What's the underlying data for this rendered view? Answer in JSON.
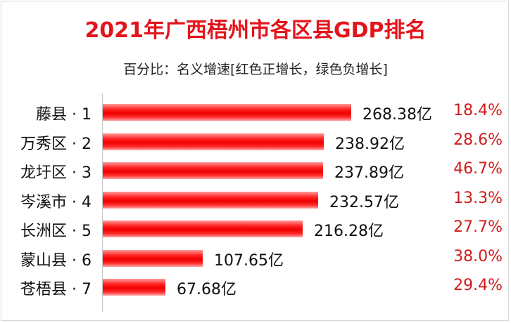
{
  "title": "2021年广西梧州市各区县GDP排名",
  "subtitle": "百分比：名义增速[红色正增长，绿色负增长]",
  "colors": {
    "title": "#e4141b",
    "bar": "#ff1a1a",
    "positive_growth": "#d11a1a",
    "negative_growth": "#1a9e3a"
  },
  "chart_data": {
    "type": "bar",
    "orientation": "horizontal",
    "title": "2021年广西梧州市各区县GDP排名",
    "subtitle": "百分比：名义增速[红色正增长，绿色负增长]",
    "categories": [
      "藤县 · 1",
      "万秀区 · 2",
      "龙圩区 · 3",
      "岑溪市 · 4",
      "长洲区 · 5",
      "蒙山县 · 6",
      "苍梧县 · 7"
    ],
    "values": [
      268.38,
      238.92,
      237.89,
      232.57,
      216.28,
      107.65,
      67.68
    ],
    "value_labels": [
      "268.38亿",
      "238.92亿",
      "237.89亿",
      "232.57亿",
      "216.28亿",
      "107.65亿",
      "67.68亿"
    ],
    "growth": [
      18.4,
      28.6,
      46.7,
      13.3,
      27.7,
      38.0,
      29.4
    ],
    "growth_labels": [
      "18.4%",
      "28.6%",
      "46.7%",
      "13.3%",
      "27.7%",
      "38.0%",
      "29.4%"
    ],
    "xlim": [
      0,
      268.38
    ],
    "xlabel": "",
    "ylabel": "",
    "grid": false,
    "legend": "none"
  }
}
